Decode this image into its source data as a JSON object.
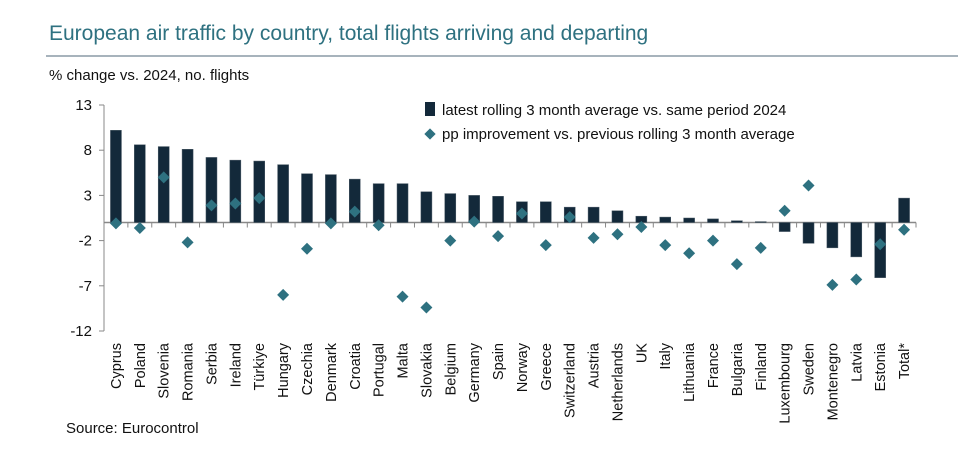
{
  "chart_data": {
    "type": "bar",
    "title": "European air traffic by country, total flights arriving and departing",
    "ylabel": "% change vs. 2024, no. flights",
    "source": "Source: Eurocontrol",
    "ylim": [
      -12,
      13
    ],
    "yticks": [
      13,
      8,
      3,
      -2,
      -7,
      -12
    ],
    "grid": false,
    "legend_position": "top-right",
    "categories": [
      "Cyprus",
      "Poland",
      "Slovenia",
      "Romania",
      "Serbia",
      "Ireland",
      "Türkiye",
      "Hungary",
      "Czechia",
      "Denmark",
      "Croatia",
      "Portugal",
      "Malta",
      "Slovakia",
      "Belgium",
      "Germany",
      "Spain",
      "Norway",
      "Greece",
      "Switzerland",
      "Austria",
      "Netherlands",
      "UK",
      "Italy",
      "Lithuania",
      "France",
      "Bulgaria",
      "Finland",
      "Luxembourg",
      "Sweden",
      "Montenegro",
      "Latvia",
      "Estonia",
      "Total*"
    ],
    "series": [
      {
        "name": "latest rolling 3 month average vs. same period 2024",
        "type": "bar",
        "color": "#13293a",
        "values": [
          10.2,
          8.6,
          8.4,
          8.1,
          7.2,
          6.9,
          6.8,
          6.4,
          5.4,
          5.3,
          4.8,
          4.3,
          4.3,
          3.4,
          3.2,
          3.0,
          2.9,
          2.3,
          2.3,
          1.7,
          1.7,
          1.3,
          0.7,
          0.6,
          0.5,
          0.4,
          0.2,
          0.1,
          -1.0,
          -2.3,
          -2.8,
          -3.8,
          -6.1,
          2.7
        ]
      },
      {
        "name": "pp improvement vs. previous rolling 3 month average",
        "type": "scatter",
        "marker": "diamond",
        "color": "#2e7180",
        "values": [
          -0.1,
          -0.6,
          5.0,
          -2.2,
          1.9,
          2.1,
          2.7,
          -8.0,
          -2.9,
          -0.1,
          1.2,
          -0.3,
          -8.2,
          -9.4,
          -2.0,
          0.1,
          -1.5,
          1.0,
          -2.5,
          0.6,
          -1.7,
          -1.3,
          -0.5,
          -2.5,
          -3.4,
          -2.0,
          -4.6,
          -2.8,
          1.3,
          4.1,
          -6.9,
          -6.3,
          -2.4,
          -0.8
        ]
      }
    ]
  }
}
